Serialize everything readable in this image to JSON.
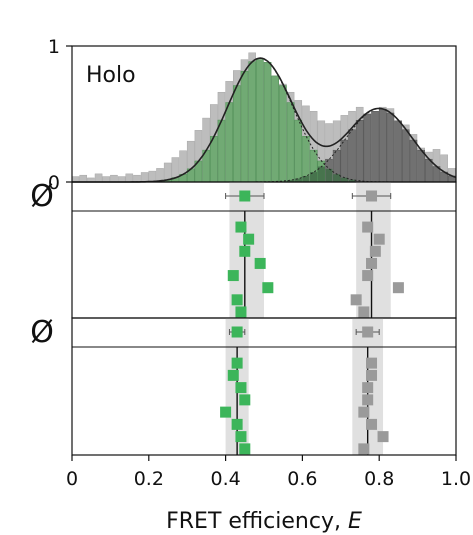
{
  "chart_data": {
    "type": "histogram_with_dotplots",
    "panel_label": "Holo",
    "xlabel": "FRET efficiency, E",
    "xlim": [
      0,
      1.0
    ],
    "x_ticks": [
      "0",
      "0.2",
      "0.4",
      "0.6",
      "0.8",
      "1.0"
    ],
    "x_tick_values": [
      0,
      0.2,
      0.4,
      0.6,
      0.8,
      1.0
    ],
    "histogram": {
      "ylim": [
        0,
        1
      ],
      "y_ticks": [
        "0",
        "1"
      ],
      "y_tick_values": [
        0,
        1
      ],
      "bin_width": 0.02,
      "total_bins": [
        {
          "x": 0.01,
          "y": 0.04
        },
        {
          "x": 0.03,
          "y": 0.05
        },
        {
          "x": 0.05,
          "y": 0.03
        },
        {
          "x": 0.07,
          "y": 0.06
        },
        {
          "x": 0.09,
          "y": 0.04
        },
        {
          "x": 0.11,
          "y": 0.05
        },
        {
          "x": 0.13,
          "y": 0.04
        },
        {
          "x": 0.15,
          "y": 0.06
        },
        {
          "x": 0.17,
          "y": 0.05
        },
        {
          "x": 0.19,
          "y": 0.07
        },
        {
          "x": 0.21,
          "y": 0.08
        },
        {
          "x": 0.23,
          "y": 0.1
        },
        {
          "x": 0.25,
          "y": 0.14
        },
        {
          "x": 0.27,
          "y": 0.18
        },
        {
          "x": 0.29,
          "y": 0.23
        },
        {
          "x": 0.31,
          "y": 0.3
        },
        {
          "x": 0.33,
          "y": 0.38
        },
        {
          "x": 0.35,
          "y": 0.47
        },
        {
          "x": 0.37,
          "y": 0.57
        },
        {
          "x": 0.39,
          "y": 0.66
        },
        {
          "x": 0.41,
          "y": 0.74
        },
        {
          "x": 0.43,
          "y": 0.82
        },
        {
          "x": 0.45,
          "y": 0.9
        },
        {
          "x": 0.47,
          "y": 0.95
        },
        {
          "x": 0.49,
          "y": 0.9
        },
        {
          "x": 0.51,
          "y": 0.88
        },
        {
          "x": 0.53,
          "y": 0.78
        },
        {
          "x": 0.55,
          "y": 0.72
        },
        {
          "x": 0.57,
          "y": 0.66
        },
        {
          "x": 0.59,
          "y": 0.6
        },
        {
          "x": 0.61,
          "y": 0.56
        },
        {
          "x": 0.63,
          "y": 0.52
        },
        {
          "x": 0.65,
          "y": 0.45
        },
        {
          "x": 0.67,
          "y": 0.43
        },
        {
          "x": 0.69,
          "y": 0.45
        },
        {
          "x": 0.71,
          "y": 0.49
        },
        {
          "x": 0.73,
          "y": 0.52
        },
        {
          "x": 0.75,
          "y": 0.55
        },
        {
          "x": 0.77,
          "y": 0.5
        },
        {
          "x": 0.79,
          "y": 0.52
        },
        {
          "x": 0.81,
          "y": 0.55
        },
        {
          "x": 0.83,
          "y": 0.54
        },
        {
          "x": 0.85,
          "y": 0.45
        },
        {
          "x": 0.87,
          "y": 0.42
        },
        {
          "x": 0.89,
          "y": 0.35
        },
        {
          "x": 0.91,
          "y": 0.25
        },
        {
          "x": 0.93,
          "y": 0.22
        },
        {
          "x": 0.95,
          "y": 0.24
        },
        {
          "x": 0.97,
          "y": 0.2
        },
        {
          "x": 0.99,
          "y": 0.1
        }
      ],
      "components": [
        {
          "center": 0.49,
          "width": 0.085,
          "amplitude": 0.91,
          "color": "#6aa86e"
        },
        {
          "center": 0.8,
          "width": 0.085,
          "amplitude": 0.54,
          "color": "#6a6a6a"
        }
      ]
    },
    "dot_panels": [
      {
        "symbol": "Ø",
        "ref_green": {
          "x": 0.45,
          "err": 0.05
        },
        "ref_gray": {
          "x": 0.78,
          "err": 0.05
        },
        "green_mean": 0.45,
        "green_band": [
          0.41,
          0.5
        ],
        "gray_mean": 0.78,
        "gray_band": [
          0.74,
          0.83
        ],
        "green_points": [
          0.44,
          0.46,
          0.45,
          0.49,
          0.42,
          0.51,
          0.43,
          0.44
        ],
        "gray_points": [
          0.77,
          0.8,
          0.79,
          0.78,
          0.77,
          0.85,
          0.74,
          0.76
        ]
      },
      {
        "symbol": "Ø",
        "ref_green": {
          "x": 0.43,
          "err": 0.02
        },
        "ref_gray": {
          "x": 0.77,
          "err": 0.03
        },
        "green_mean": 0.43,
        "green_band": [
          0.4,
          0.46
        ],
        "gray_mean": 0.77,
        "gray_band": [
          0.73,
          0.81
        ],
        "green_points": [
          0.43,
          0.42,
          0.44,
          0.45,
          0.4,
          0.43,
          0.44,
          0.45
        ],
        "gray_points": [
          0.78,
          0.78,
          0.77,
          0.77,
          0.76,
          0.78,
          0.81,
          0.76
        ]
      }
    ],
    "colors": {
      "green": "#3cb55a",
      "gray": "#9a9a9a",
      "band": "#e0e0e0",
      "green_fill": "#6aa86e",
      "dark_fill": "#6a6a6a",
      "light_bar": "#bdbdbd"
    }
  }
}
